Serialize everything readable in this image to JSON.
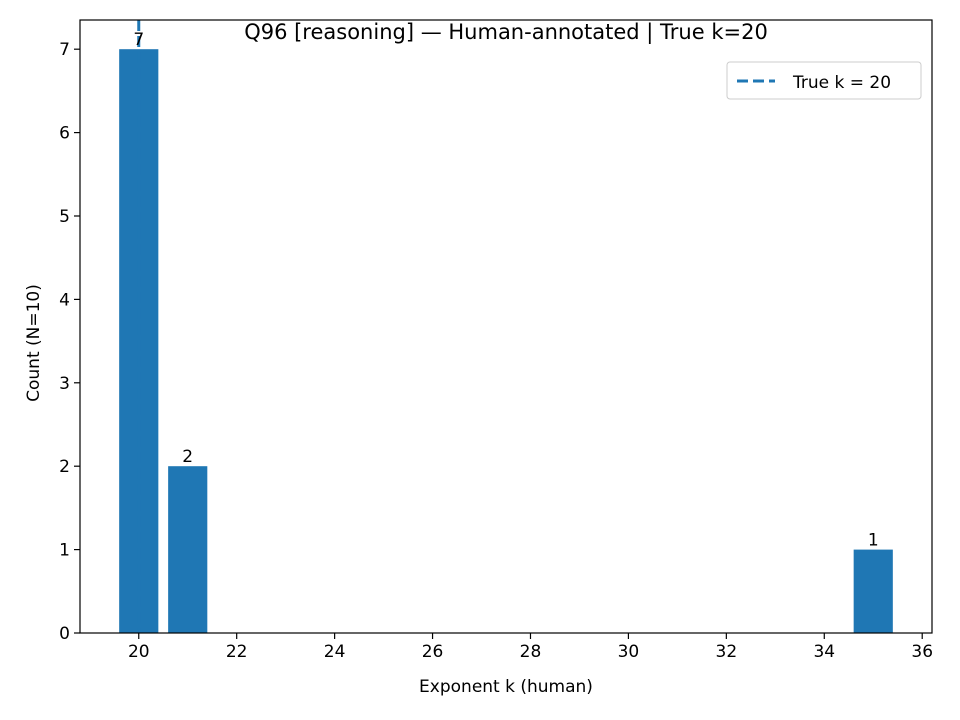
{
  "chart_data": {
    "type": "bar",
    "title": "Q96 [reasoning] — Human-annotated | True k=20",
    "xlabel": "Exponent k (human)",
    "ylabel": "Count (N=10)",
    "x": [
      20,
      21,
      35
    ],
    "values": [
      7,
      2,
      1
    ],
    "bar_labels": [
      "7",
      "2",
      "1"
    ],
    "xlim": [
      18.8,
      36.2
    ],
    "ylim": [
      0,
      7.35
    ],
    "xticks": [
      20,
      22,
      24,
      26,
      28,
      30,
      32,
      34,
      36
    ],
    "yticks": [
      0,
      1,
      2,
      3,
      4,
      5,
      6,
      7
    ],
    "bar_color": "#1f77b4",
    "reference_line": {
      "x": 20,
      "style": "dashed",
      "color": "#1f77b4",
      "label": "True k = 20"
    },
    "legend": {
      "position": "top-right",
      "entries": [
        "True k = 20"
      ]
    },
    "grid": false
  }
}
